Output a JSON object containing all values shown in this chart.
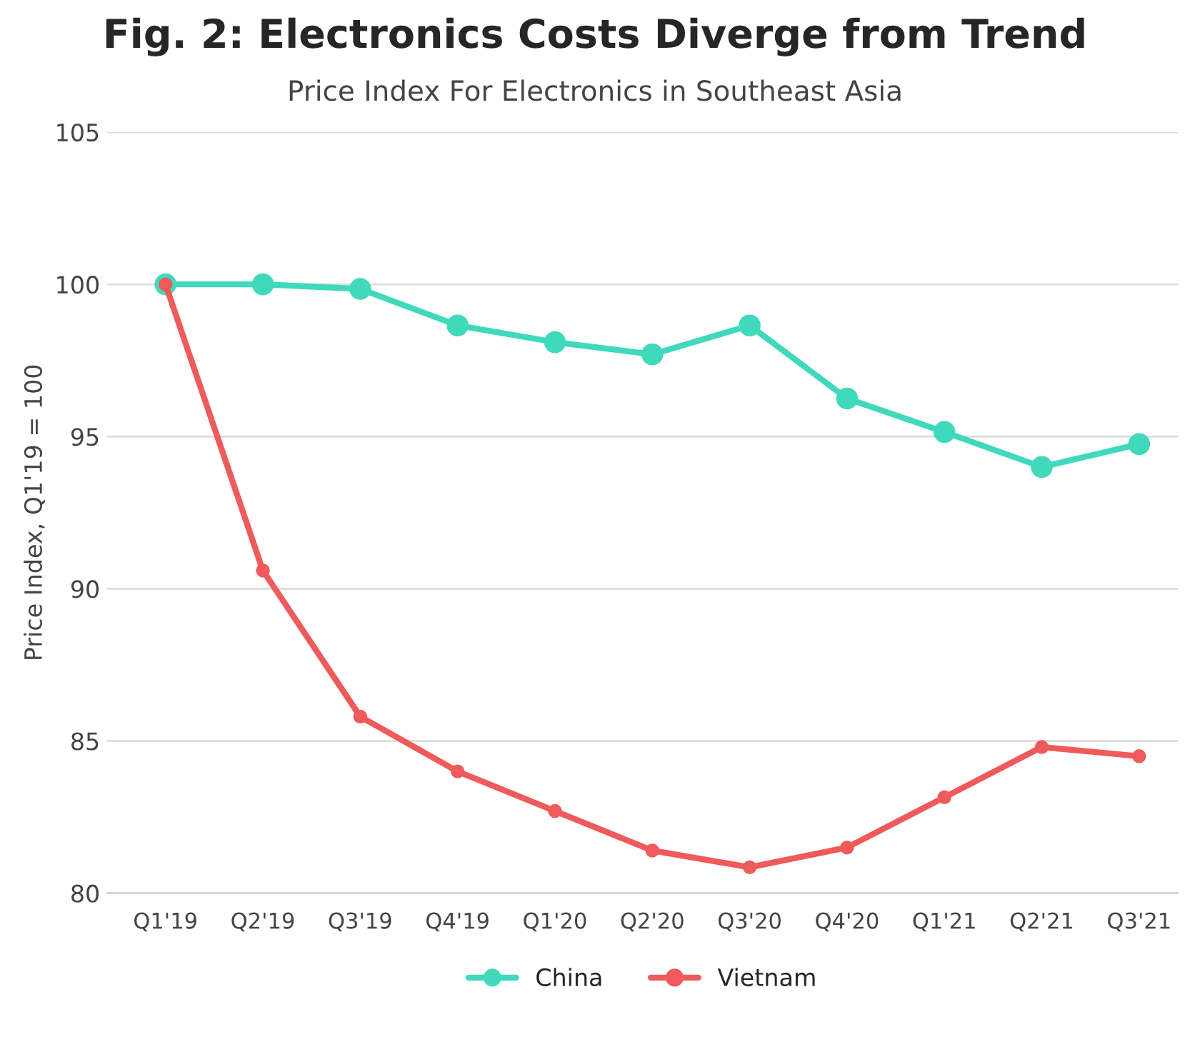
{
  "chart_data": {
    "type": "line",
    "title": "Fig. 2: Electronics Costs Diverge from Trend",
    "subtitle": "Price Index For Electronics in Southeast Asia",
    "ylabel": "Price Index, Q1'19 = 100",
    "categories": [
      "Q1'19",
      "Q2'19",
      "Q3'19",
      "Q4'19",
      "Q1'20",
      "Q2'20",
      "Q3'20",
      "Q4'20",
      "Q1'21",
      "Q2'21",
      "Q3'21"
    ],
    "series": [
      {
        "name": "China",
        "color": "#40d9bb",
        "values": [
          100,
          100,
          99.85,
          98.65,
          98.1,
          97.7,
          98.65,
          96.25,
          95.15,
          94.0,
          94.75
        ]
      },
      {
        "name": "Vietnam",
        "color": "#ef5a5a",
        "values": [
          100,
          90.6,
          85.8,
          84.0,
          82.7,
          81.4,
          80.85,
          81.5,
          83.15,
          84.8,
          84.5
        ]
      }
    ],
    "ylim": [
      80,
      105
    ],
    "yticks": [
      80,
      85,
      90,
      95,
      100,
      105
    ],
    "grid": "y",
    "legend": "bottom",
    "marker": "circle",
    "line_style": "solid"
  }
}
